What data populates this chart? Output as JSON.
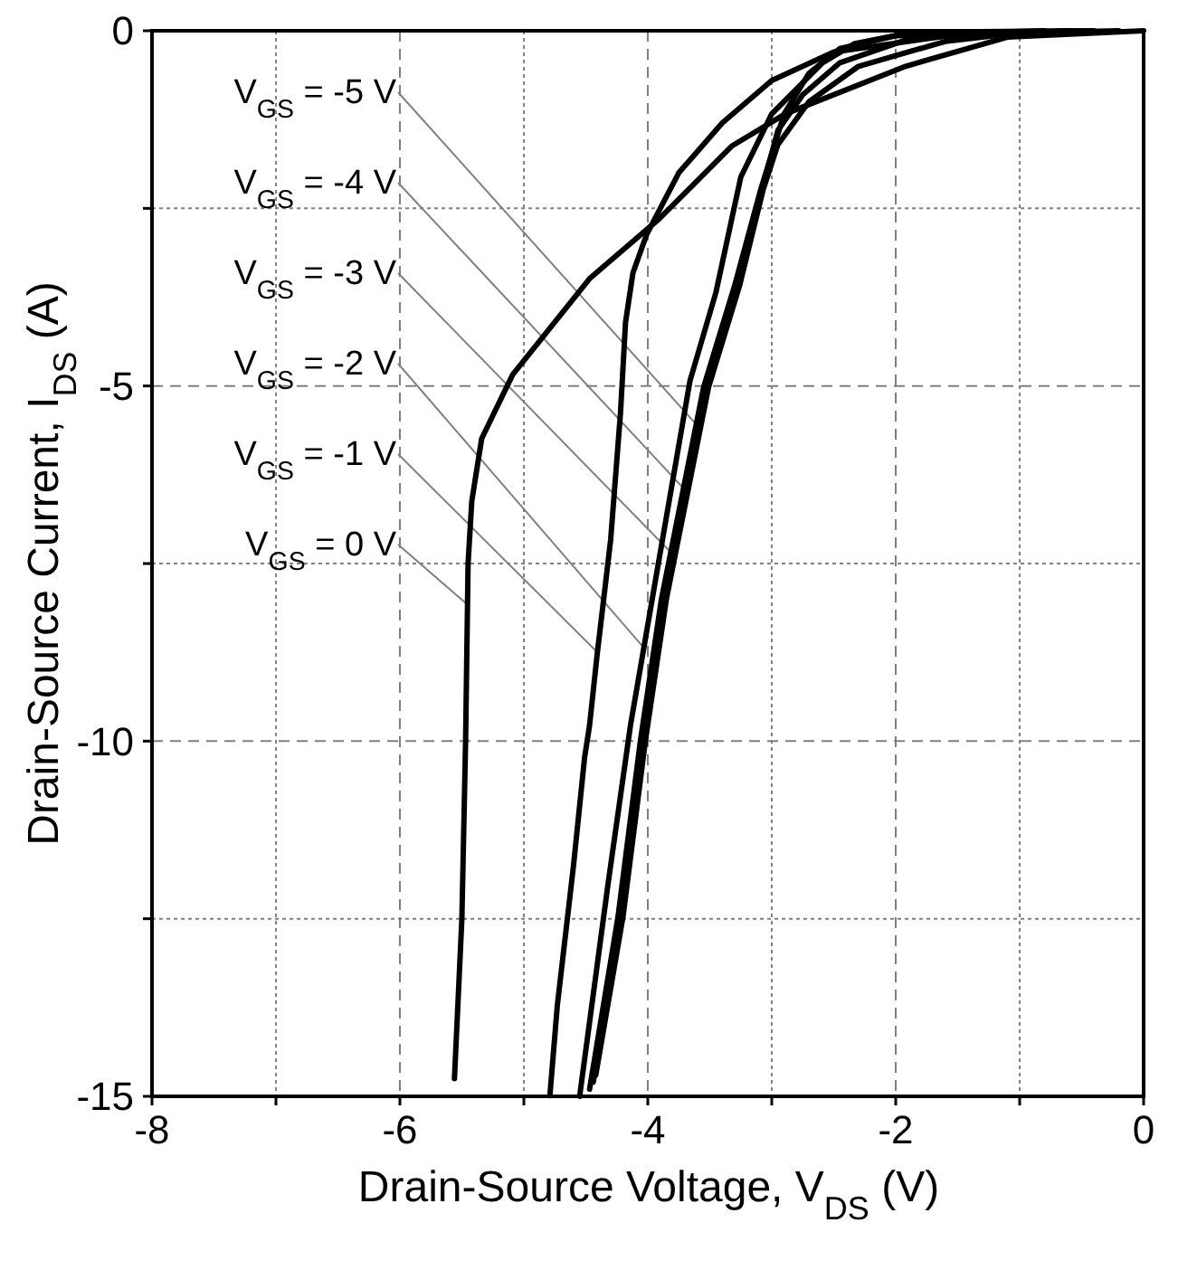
{
  "chart_data": {
    "type": "line",
    "xlabel": "Drain-Source Voltage, V$_{DS}$ (V)",
    "ylabel": "Drain-Source Current, I$_{DS}$ (A)",
    "xlim": [
      -8,
      0
    ],
    "ylim": [
      -15,
      0
    ],
    "xticks": [
      -8,
      {
        "value": -7,
        "label": null
      },
      -6,
      {
        "value": -5,
        "label": null
      },
      -4,
      {
        "value": -3,
        "label": null
      },
      -2,
      {
        "value": -1,
        "label": null
      },
      0
    ],
    "yticks": [
      -15,
      {
        "value": -12.5,
        "label": null
      },
      -10,
      {
        "value": -7.5,
        "label": null
      },
      -5,
      {
        "value": -2.5,
        "label": null
      },
      0
    ],
    "grid": true,
    "marker": "none",
    "line_style": "solid",
    "series": [
      {
        "color": "#000000",
        "x": [
          -5.56,
          -5.5,
          -5.47,
          -5.45,
          -5.42,
          -5.34,
          -5.09,
          -4.47,
          -3.91,
          -3.32,
          -2.89,
          -1.92,
          -1.1,
          0
        ],
        "values": [
          -14.75,
          -12.5,
          -10,
          -7.5,
          -6.62,
          -5.74,
          -4.84,
          -3.49,
          -2.65,
          -1.62,
          -1.17,
          -0.5,
          -0.09,
          0
        ]
      },
      {
        "color": "#000000",
        "x": [
          -4.79,
          -4.73,
          -4.6,
          -4.51,
          -4.47,
          -4.41,
          -4.3,
          -4.22,
          -4.18,
          -4.12,
          -4.01,
          -3.75,
          -3.4,
          -3.0,
          -2.5,
          -1.5,
          -0.2
        ],
        "values": [
          -14.99,
          -13.72,
          -11.76,
          -10.23,
          -9.78,
          -8.8,
          -7.17,
          -5.37,
          -4.11,
          -3.41,
          -2.87,
          -2.0,
          -1.3,
          -0.7,
          -0.3,
          -0.05,
          0
        ]
      },
      {
        "color": "#000000",
        "x": [
          -4.55,
          -4.32,
          -4.14,
          -3.91,
          -3.66,
          -3.45,
          -3.25,
          -3.0,
          -2.59,
          -2.33,
          -1.87,
          -0.4
        ],
        "values": [
          -15,
          -12,
          -9.78,
          -7.45,
          -4.93,
          -3.68,
          -2.06,
          -1.17,
          -0.45,
          -0.18,
          -0.02,
          0
        ]
      },
      {
        "color": "#000000",
        "x": [
          -4.47,
          -4.24,
          -4.06,
          -3.89,
          -3.55,
          -3.3,
          -3.09,
          -2.9,
          -2.7,
          -2.45,
          -2.0,
          -0.6
        ],
        "values": [
          -14.9,
          -12.47,
          -10,
          -8,
          -5.02,
          -3.59,
          -2.24,
          -1.17,
          -0.6,
          -0.25,
          -0.07,
          0
        ]
      },
      {
        "color": "#000000",
        "x": [
          -4.44,
          -4.22,
          -4.04,
          -3.87,
          -3.53,
          -3.28,
          -3.08,
          -2.95,
          -2.75,
          -2.45,
          -1.9,
          -1.2,
          -0.8
        ],
        "values": [
          -14.8,
          -12.47,
          -10,
          -8,
          -5.02,
          -3.59,
          -2.24,
          -1.4,
          -0.9,
          -0.45,
          -0.12,
          -0.02,
          0
        ]
      },
      {
        "color": "#000000",
        "x": [
          -4.42,
          -4.2,
          -4.02,
          -3.85,
          -3.51,
          -3.26,
          -3.07,
          -2.95,
          -2.7,
          -2.3,
          -1.6,
          -1.0,
          -0.5
        ],
        "values": [
          -14.7,
          -12.47,
          -10,
          -8,
          -5.02,
          -3.59,
          -2.24,
          -1.6,
          -1.0,
          -0.5,
          -0.15,
          -0.03,
          0
        ]
      }
    ],
    "annotations": [
      {
        "text": "V$_{GS}$ = -5 V",
        "x": -3.6,
        "y": -5.56
      },
      {
        "text": "V$_{GS}$ = -4 V",
        "x": -3.68,
        "y": -6.5
      },
      {
        "text": "V$_{GS}$ = -3 V",
        "x": -3.81,
        "y": -7.35
      },
      {
        "text": "V$_{GS}$ = -2 V",
        "x": -4.04,
        "y": -8.67
      },
      {
        "text": "V$_{GS}$ = -1 V",
        "x": -4.4,
        "y": -8.76
      },
      {
        "text": "V$_{GS}$ = 0 V",
        "x": -5.46,
        "y": -8.07
      }
    ]
  }
}
